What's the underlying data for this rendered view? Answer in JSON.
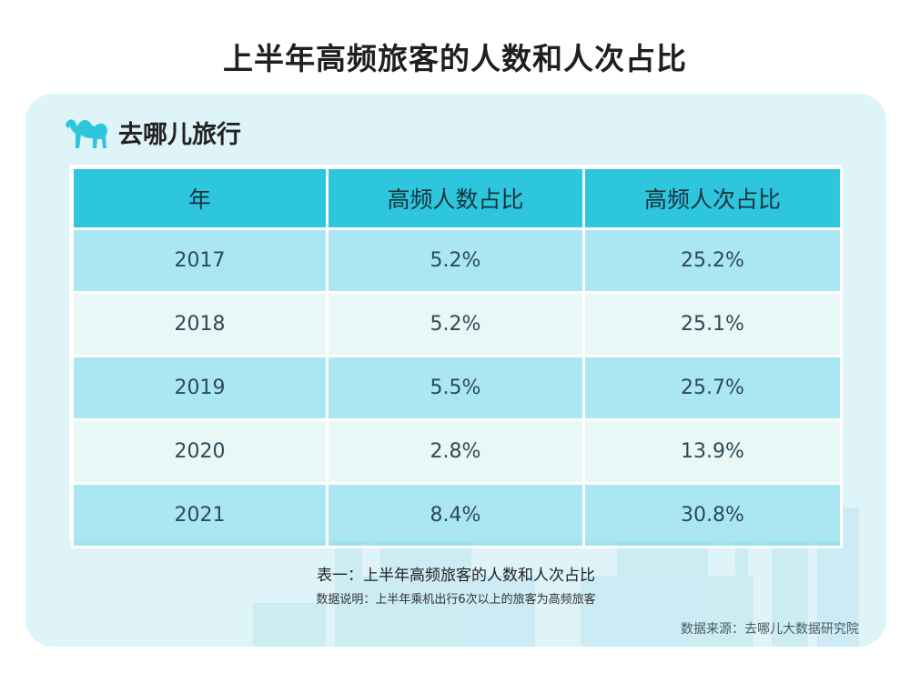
{
  "title": "上半年高频旅客的人数和人次占比",
  "logo": {
    "text": "去哪儿旅行",
    "icon": "camel-icon",
    "color": "#2dc6dd"
  },
  "colors": {
    "header_bg": "#2dc6dd",
    "row_dark": "#8fdcea",
    "row_light": "#e6f5f5",
    "card_bg": "#dff4f9"
  },
  "chart_data": {
    "type": "table",
    "columns": [
      "年",
      "高频人数占比",
      "高频人次占比"
    ],
    "rows": [
      [
        "2017",
        "5.2%",
        "25.2%"
      ],
      [
        "2018",
        "5.2%",
        "25.1%"
      ],
      [
        "2019",
        "5.5%",
        "25.7%"
      ],
      [
        "2020",
        "2.8%",
        "13.9%"
      ],
      [
        "2021",
        "8.4%",
        "30.8%"
      ]
    ]
  },
  "caption": "表一：上半年高频旅客的人数和人次占比",
  "note": "数据说明：上半年乘机出行6次以上的旅客为高频旅客",
  "source": "数据来源：去哪儿大数据研究院"
}
